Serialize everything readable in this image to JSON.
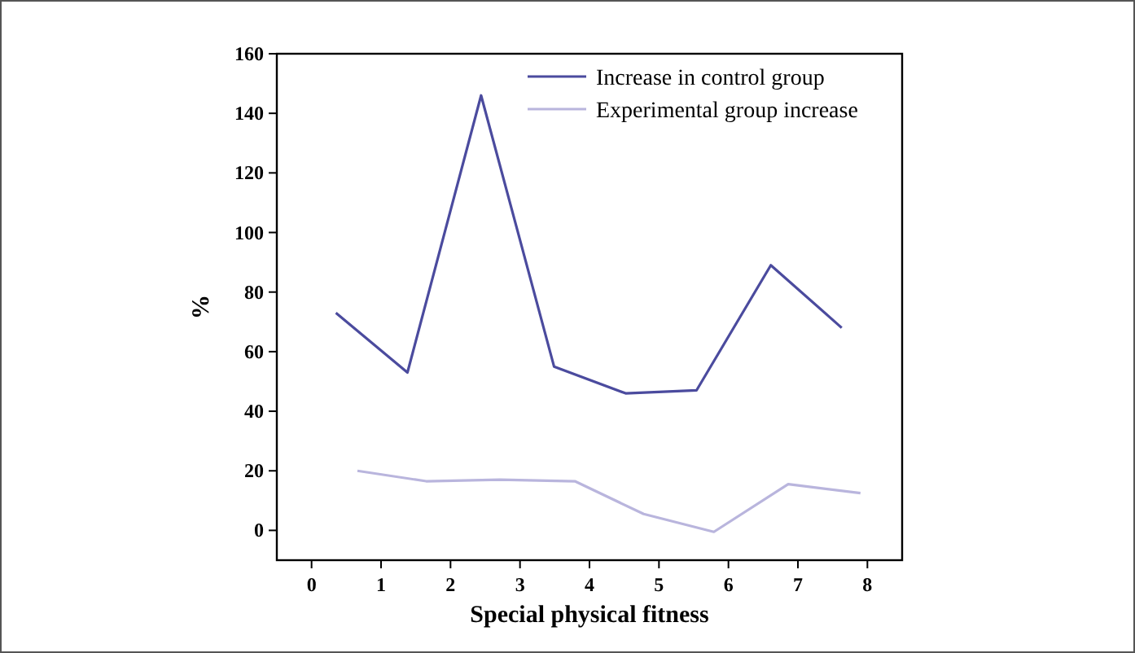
{
  "chart_data": {
    "type": "line",
    "xlabel": "Special physical fitness",
    "ylabel": "%",
    "xlim": [
      -0.5,
      8.5
    ],
    "xticks": [
      0,
      1,
      2,
      3,
      4,
      5,
      6,
      7,
      8
    ],
    "ylim": [
      -10,
      160
    ],
    "yticks": [
      0,
      20,
      40,
      60,
      80,
      100,
      120,
      140,
      160
    ],
    "legend": "top right",
    "grid": false,
    "marker": "none",
    "series": [
      {
        "name": "Increase in control group",
        "color": "#4b4b9e",
        "x": [
          0.35,
          1.38,
          2.44,
          3.49,
          4.52,
          5.54,
          6.61,
          7.63
        ],
        "values": [
          73,
          53,
          146,
          55,
          46,
          47,
          89,
          68
        ]
      },
      {
        "name": "Experimental group increase",
        "color": "#b9b5dd",
        "x": [
          0.66,
          1.65,
          2.71,
          3.79,
          4.78,
          5.79,
          6.86,
          7.9
        ],
        "values": [
          20,
          16.5,
          17,
          16.5,
          5.5,
          -0.5,
          15.5,
          12.5
        ]
      }
    ]
  }
}
